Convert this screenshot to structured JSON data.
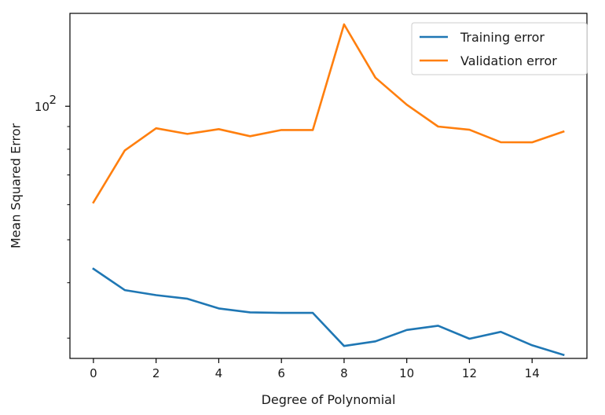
{
  "chart_data": {
    "type": "line",
    "title": "",
    "xlabel": "Degree of Polynomial",
    "ylabel": "Mean Squared Error",
    "x": [
      0,
      1,
      2,
      3,
      4,
      5,
      6,
      7,
      8,
      9,
      10,
      11,
      12,
      13,
      14,
      15
    ],
    "xlim": [
      -0.75,
      15.75
    ],
    "xticks": [
      0,
      2,
      4,
      6,
      8,
      10,
      12,
      14
    ],
    "xtick_labels": [
      "0",
      "2",
      "4",
      "6",
      "8",
      "10",
      "12",
      "14"
    ],
    "yscale": "log",
    "ylim": [
      27,
      162
    ],
    "yticks_major": [
      100
    ],
    "ytick_major_label_base": "10",
    "ytick_major_label_exp": "2",
    "yticks_minor": [
      30,
      40,
      50,
      60,
      70,
      80,
      90,
      200
    ],
    "grid": false,
    "legend_position": "top-right",
    "series": [
      {
        "name": "Training error",
        "color": "#1f77b4",
        "values": [
          43.0,
          38.5,
          37.5,
          36.8,
          35.0,
          34.3,
          34.2,
          34.2,
          28.8,
          29.5,
          31.3,
          32.0,
          29.9,
          31.0,
          28.9,
          27.5
        ]
      },
      {
        "name": "Validation error",
        "color": "#ff7f0e",
        "values": [
          60.7,
          79.5,
          89.2,
          86.6,
          88.8,
          85.6,
          88.4,
          88.4,
          153.0,
          116.0,
          100.8,
          90.0,
          88.5,
          83.0,
          82.9,
          87.7
        ]
      }
    ]
  }
}
